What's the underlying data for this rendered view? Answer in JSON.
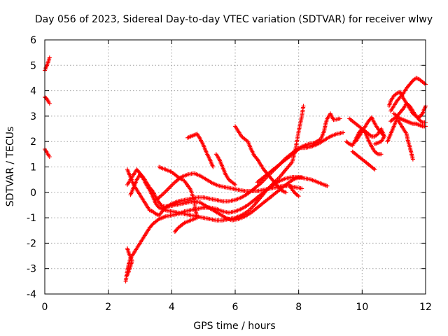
{
  "chart_data": {
    "type": "scatter",
    "title": "Day 056 of 2023, Sidereal Day-to-day VTEC variation (SDTVAR) for receiver wlwy",
    "xlabel": "GPS time / hours",
    "ylabel": "SDTVAR / TECUs",
    "xlim": [
      0,
      12
    ],
    "ylim": [
      -4,
      6
    ],
    "xticks": [
      "0",
      "2",
      "4",
      "6",
      "8",
      "10",
      "12"
    ],
    "yticks": [
      "-4",
      "-3",
      "-2",
      "-1",
      "0",
      "1",
      "2",
      "3",
      "4",
      "5",
      "6"
    ],
    "grid": true,
    "marker": "plus",
    "color": "#ff0000",
    "tracks": [
      [
        [
          0.0,
          4.8
        ],
        [
          0.05,
          4.95
        ],
        [
          0.1,
          5.1
        ],
        [
          0.15,
          5.3
        ]
      ],
      [
        [
          0.0,
          3.75
        ],
        [
          0.05,
          3.7
        ],
        [
          0.1,
          3.6
        ],
        [
          0.15,
          3.5
        ]
      ],
      [
        [
          0.0,
          1.7
        ],
        [
          0.05,
          1.6
        ],
        [
          0.1,
          1.5
        ],
        [
          0.15,
          1.4
        ]
      ],
      [
        [
          2.55,
          -3.5
        ],
        [
          2.6,
          -3.1
        ],
        [
          2.65,
          -2.8
        ],
        [
          2.7,
          -2.6
        ],
        [
          2.8,
          -2.4
        ],
        [
          2.9,
          -2.2
        ],
        [
          3.0,
          -2.0
        ],
        [
          3.1,
          -1.8
        ],
        [
          3.2,
          -1.6
        ],
        [
          3.3,
          -1.4
        ],
        [
          3.4,
          -1.25
        ],
        [
          3.5,
          -1.15
        ],
        [
          3.6,
          -1.05
        ],
        [
          3.7,
          -1.0
        ],
        [
          3.8,
          -0.95
        ],
        [
          4.0,
          -0.9
        ],
        [
          4.2,
          -0.85
        ],
        [
          4.4,
          -0.75
        ],
        [
          4.6,
          -0.7
        ],
        [
          4.8,
          -0.65
        ],
        [
          5.0,
          -0.6
        ],
        [
          5.2,
          -0.6
        ],
        [
          5.4,
          -0.65
        ],
        [
          5.6,
          -0.75
        ],
        [
          5.8,
          -0.8
        ],
        [
          6.0,
          -0.75
        ],
        [
          6.2,
          -0.65
        ],
        [
          6.4,
          -0.5
        ],
        [
          6.6,
          -0.3
        ],
        [
          6.8,
          -0.1
        ],
        [
          7.0,
          0.1
        ],
        [
          7.2,
          0.3
        ],
        [
          7.4,
          0.45
        ],
        [
          7.6,
          0.55
        ],
        [
          7.8,
          0.6
        ],
        [
          8.0,
          0.6
        ],
        [
          8.2,
          0.55
        ],
        [
          8.4,
          0.5
        ],
        [
          8.6,
          0.4
        ],
        [
          8.8,
          0.3
        ],
        [
          8.9,
          0.25
        ]
      ],
      [
        [
          2.6,
          -2.2
        ],
        [
          2.65,
          -2.4
        ],
        [
          2.7,
          -2.55
        ],
        [
          2.75,
          -2.7
        ],
        [
          2.7,
          -2.9
        ],
        [
          2.65,
          -3.1
        ],
        [
          2.6,
          -3.25
        ]
      ],
      [
        [
          2.6,
          0.9
        ],
        [
          2.7,
          0.6
        ],
        [
          2.8,
          0.3
        ],
        [
          2.9,
          0.1
        ],
        [
          3.0,
          -0.1
        ],
        [
          3.1,
          -0.3
        ],
        [
          3.2,
          -0.5
        ],
        [
          3.3,
          -0.7
        ],
        [
          3.4,
          -0.75
        ],
        [
          3.5,
          -0.85
        ],
        [
          3.6,
          -0.9
        ],
        [
          3.8,
          -0.6
        ],
        [
          4.0,
          -0.45
        ],
        [
          4.2,
          -0.35
        ],
        [
          4.4,
          -0.3
        ],
        [
          4.6,
          -0.25
        ],
        [
          4.8,
          -0.2
        ],
        [
          5.0,
          -0.2
        ],
        [
          5.2,
          -0.25
        ],
        [
          5.4,
          -0.3
        ],
        [
          5.6,
          -0.35
        ],
        [
          5.8,
          -0.35
        ],
        [
          6.0,
          -0.3
        ],
        [
          6.2,
          -0.2
        ],
        [
          6.4,
          -0.05
        ],
        [
          6.6,
          0.15
        ],
        [
          6.8,
          0.35
        ],
        [
          7.0,
          0.6
        ],
        [
          7.2,
          0.85
        ],
        [
          7.4,
          1.1
        ],
        [
          7.6,
          1.35
        ],
        [
          7.8,
          1.55
        ],
        [
          8.0,
          1.75
        ],
        [
          8.2,
          1.75
        ],
        [
          8.4,
          1.8
        ],
        [
          8.6,
          1.9
        ],
        [
          8.8,
          2.05
        ],
        [
          9.0,
          2.2
        ],
        [
          9.2,
          2.3
        ],
        [
          9.4,
          2.35
        ]
      ],
      [
        [
          2.6,
          0.3
        ],
        [
          2.7,
          0.5
        ],
        [
          2.8,
          0.7
        ],
        [
          2.9,
          0.9
        ],
        [
          3.0,
          0.75
        ],
        [
          3.1,
          0.6
        ],
        [
          3.2,
          0.4
        ],
        [
          3.3,
          0.2
        ],
        [
          3.4,
          0.05
        ],
        [
          3.5,
          -0.2
        ],
        [
          3.6,
          -0.4
        ],
        [
          3.7,
          -0.55
        ],
        [
          3.9,
          -0.55
        ],
        [
          4.1,
          -0.5
        ],
        [
          4.3,
          -0.45
        ],
        [
          4.5,
          -0.4
        ],
        [
          4.7,
          -0.35
        ],
        [
          4.9,
          -0.4
        ],
        [
          5.1,
          -0.55
        ],
        [
          5.3,
          -0.7
        ],
        [
          5.5,
          -0.85
        ],
        [
          5.7,
          -1.0
        ],
        [
          5.9,
          -1.1
        ],
        [
          6.1,
          -1.05
        ],
        [
          6.3,
          -0.95
        ],
        [
          6.5,
          -0.8
        ],
        [
          6.7,
          -0.6
        ],
        [
          6.9,
          -0.4
        ],
        [
          7.1,
          -0.2
        ],
        [
          7.3,
          0.0
        ],
        [
          7.5,
          0.2
        ],
        [
          7.7,
          0.4
        ],
        [
          7.9,
          0.55
        ],
        [
          8.1,
          0.6
        ]
      ],
      [
        [
          2.7,
          -0.1
        ],
        [
          2.8,
          0.2
        ],
        [
          2.9,
          0.5
        ],
        [
          3.0,
          0.7
        ],
        [
          3.1,
          0.55
        ],
        [
          3.2,
          0.3
        ],
        [
          3.3,
          0.1
        ],
        [
          3.4,
          -0.15
        ],
        [
          3.5,
          -0.45
        ],
        [
          3.6,
          -0.6
        ],
        [
          3.8,
          -0.7
        ],
        [
          4.0,
          -0.75
        ],
        [
          4.2,
          -0.8
        ],
        [
          4.4,
          -0.85
        ],
        [
          4.6,
          -0.9
        ],
        [
          4.8,
          -0.95
        ],
        [
          5.0,
          -1.0
        ],
        [
          5.2,
          -1.05
        ],
        [
          5.4,
          -1.1
        ],
        [
          5.6,
          -1.1
        ],
        [
          5.8,
          -1.05
        ],
        [
          6.0,
          -1.0
        ],
        [
          6.2,
          -0.9
        ],
        [
          6.4,
          -0.75
        ],
        [
          6.6,
          -0.5
        ],
        [
          6.8,
          -0.2
        ],
        [
          7.0,
          0.1
        ],
        [
          7.2,
          0.35
        ],
        [
          7.4,
          0.6
        ],
        [
          7.6,
          0.9
        ],
        [
          7.8,
          1.2
        ],
        [
          7.9,
          1.7
        ],
        [
          8.0,
          2.4
        ],
        [
          8.1,
          3.0
        ],
        [
          8.15,
          3.4
        ]
      ],
      [
        [
          3.5,
          -0.3
        ],
        [
          3.7,
          -0.1
        ],
        [
          3.9,
          0.15
        ],
        [
          4.1,
          0.4
        ],
        [
          4.3,
          0.6
        ],
        [
          4.5,
          0.7
        ],
        [
          4.7,
          0.75
        ],
        [
          4.9,
          0.65
        ],
        [
          5.1,
          0.5
        ],
        [
          5.3,
          0.35
        ],
        [
          5.5,
          0.25
        ],
        [
          5.7,
          0.2
        ],
        [
          5.9,
          0.15
        ],
        [
          6.1,
          0.1
        ],
        [
          6.3,
          0.05
        ],
        [
          6.5,
          0.05
        ],
        [
          6.7,
          0.05
        ],
        [
          6.9,
          0.1
        ],
        [
          7.1,
          0.15
        ],
        [
          7.3,
          0.2
        ],
        [
          7.5,
          0.25
        ],
        [
          7.7,
          0.25
        ],
        [
          7.9,
          0.2
        ],
        [
          8.1,
          0.15
        ]
      ],
      [
        [
          3.6,
          1.0
        ],
        [
          3.8,
          0.9
        ],
        [
          4.0,
          0.8
        ],
        [
          4.2,
          0.6
        ],
        [
          4.4,
          0.45
        ],
        [
          4.6,
          0.1
        ],
        [
          4.7,
          -0.3
        ],
        [
          4.75,
          -0.7
        ],
        [
          4.8,
          -1.0
        ],
        [
          4.6,
          -1.1
        ],
        [
          4.4,
          -1.2
        ],
        [
          4.2,
          -1.4
        ],
        [
          4.1,
          -1.55
        ]
      ],
      [
        [
          4.5,
          2.15
        ],
        [
          4.6,
          2.2
        ],
        [
          4.7,
          2.25
        ],
        [
          4.8,
          2.3
        ],
        [
          4.9,
          2.1
        ],
        [
          5.0,
          1.85
        ],
        [
          5.1,
          1.55
        ],
        [
          5.2,
          1.3
        ],
        [
          5.3,
          1.0
        ]
      ],
      [
        [
          5.4,
          1.5
        ],
        [
          5.5,
          1.3
        ],
        [
          5.6,
          1.0
        ],
        [
          5.7,
          0.7
        ],
        [
          5.8,
          0.5
        ],
        [
          5.9,
          0.4
        ],
        [
          6.0,
          0.3
        ]
      ],
      [
        [
          6.0,
          2.6
        ],
        [
          6.1,
          2.4
        ],
        [
          6.2,
          2.2
        ],
        [
          6.3,
          2.1
        ],
        [
          6.4,
          2.0
        ],
        [
          6.5,
          1.7
        ],
        [
          6.6,
          1.45
        ],
        [
          6.7,
          1.3
        ],
        [
          6.8,
          1.1
        ],
        [
          6.9,
          0.9
        ],
        [
          7.0,
          0.75
        ],
        [
          7.1,
          0.6
        ],
        [
          7.2,
          0.45
        ],
        [
          7.3,
          0.3
        ],
        [
          7.4,
          0.15
        ],
        [
          7.5,
          0.05
        ],
        [
          7.6,
          0.0
        ]
      ],
      [
        [
          6.7,
          0.4
        ],
        [
          6.9,
          0.6
        ],
        [
          7.1,
          0.8
        ],
        [
          7.3,
          1.0
        ],
        [
          7.5,
          1.2
        ],
        [
          7.7,
          1.4
        ],
        [
          7.9,
          1.6
        ],
        [
          8.1,
          1.8
        ],
        [
          8.3,
          1.9
        ],
        [
          8.5,
          1.95
        ],
        [
          8.7,
          2.1
        ],
        [
          8.8,
          2.4
        ],
        [
          8.85,
          2.7
        ],
        [
          8.9,
          2.9
        ],
        [
          9.0,
          3.1
        ],
        [
          9.1,
          2.85
        ],
        [
          9.3,
          2.9
        ]
      ],
      [
        [
          7.7,
          0.3
        ],
        [
          7.8,
          0.1
        ],
        [
          7.9,
          -0.05
        ],
        [
          8.0,
          -0.15
        ]
      ],
      [
        [
          9.5,
          2.0
        ],
        [
          9.6,
          1.9
        ],
        [
          9.7,
          1.85
        ],
        [
          9.8,
          2.1
        ],
        [
          9.9,
          2.35
        ],
        [
          10.0,
          2.5
        ],
        [
          10.1,
          2.35
        ],
        [
          10.2,
          2.05
        ],
        [
          10.3,
          1.8
        ],
        [
          10.4,
          1.6
        ],
        [
          10.5,
          1.5
        ],
        [
          10.6,
          1.5
        ]
      ],
      [
        [
          9.6,
          2.9
        ],
        [
          9.7,
          2.8
        ],
        [
          9.8,
          2.7
        ],
        [
          9.9,
          2.6
        ],
        [
          10.0,
          2.5
        ],
        [
          10.1,
          2.4
        ],
        [
          10.2,
          2.3
        ],
        [
          10.3,
          2.2
        ],
        [
          10.4,
          2.2
        ],
        [
          10.5,
          2.3
        ],
        [
          10.6,
          2.5
        ],
        [
          10.7,
          2.2
        ],
        [
          10.6,
          2.0
        ],
        [
          10.5,
          1.95
        ],
        [
          10.4,
          1.9
        ]
      ],
      [
        [
          9.7,
          1.6
        ],
        [
          9.8,
          1.5
        ],
        [
          9.9,
          1.4
        ],
        [
          10.0,
          1.3
        ],
        [
          10.1,
          1.2
        ],
        [
          10.2,
          1.1
        ],
        [
          10.3,
          1.0
        ],
        [
          10.4,
          0.9
        ]
      ],
      [
        [
          9.8,
          2.0
        ],
        [
          9.9,
          2.2
        ],
        [
          10.0,
          2.4
        ],
        [
          10.1,
          2.6
        ],
        [
          10.2,
          2.8
        ],
        [
          10.3,
          2.95
        ],
        [
          10.4,
          2.7
        ],
        [
          10.5,
          2.5
        ],
        [
          10.6,
          2.35
        ],
        [
          10.7,
          2.2
        ]
      ],
      [
        [
          10.8,
          2.0
        ],
        [
          10.9,
          2.3
        ],
        [
          11.0,
          2.6
        ],
        [
          11.1,
          2.9
        ],
        [
          11.2,
          2.7
        ],
        [
          11.3,
          2.5
        ],
        [
          11.4,
          2.3
        ],
        [
          11.45,
          2.0
        ],
        [
          11.5,
          1.8
        ],
        [
          11.55,
          1.55
        ],
        [
          11.6,
          1.3
        ]
      ],
      [
        [
          10.85,
          3.4
        ],
        [
          10.9,
          3.6
        ],
        [
          11.0,
          3.8
        ],
        [
          11.1,
          3.9
        ],
        [
          11.2,
          3.95
        ],
        [
          11.3,
          3.7
        ],
        [
          11.4,
          3.5
        ],
        [
          11.5,
          3.3
        ],
        [
          11.6,
          3.1
        ],
        [
          11.7,
          3.0
        ],
        [
          11.8,
          2.95
        ],
        [
          11.9,
          3.1
        ],
        [
          12.0,
          3.4
        ]
      ],
      [
        [
          10.9,
          3.2
        ],
        [
          11.0,
          3.4
        ],
        [
          11.1,
          3.6
        ],
        [
          11.2,
          3.75
        ],
        [
          11.3,
          3.9
        ],
        [
          11.4,
          4.1
        ],
        [
          11.5,
          4.25
        ],
        [
          11.6,
          4.4
        ],
        [
          11.7,
          4.5
        ],
        [
          11.8,
          4.45
        ],
        [
          11.9,
          4.35
        ],
        [
          12.0,
          4.25
        ]
      ],
      [
        [
          10.9,
          2.8
        ],
        [
          11.0,
          2.9
        ],
        [
          11.1,
          3.0
        ],
        [
          11.2,
          3.15
        ],
        [
          11.3,
          3.3
        ],
        [
          11.4,
          3.5
        ],
        [
          11.5,
          3.4
        ],
        [
          11.6,
          3.2
        ],
        [
          11.7,
          3.0
        ],
        [
          11.8,
          2.85
        ],
        [
          11.9,
          2.75
        ],
        [
          12.0,
          2.75
        ]
      ],
      [
        [
          11.0,
          3.1
        ],
        [
          11.1,
          3.0
        ],
        [
          11.2,
          2.9
        ],
        [
          11.3,
          2.85
        ],
        [
          11.4,
          2.8
        ],
        [
          11.5,
          2.75
        ],
        [
          11.6,
          2.7
        ],
        [
          11.7,
          2.7
        ],
        [
          11.8,
          2.65
        ],
        [
          11.9,
          2.6
        ],
        [
          12.0,
          2.6
        ]
      ]
    ]
  }
}
